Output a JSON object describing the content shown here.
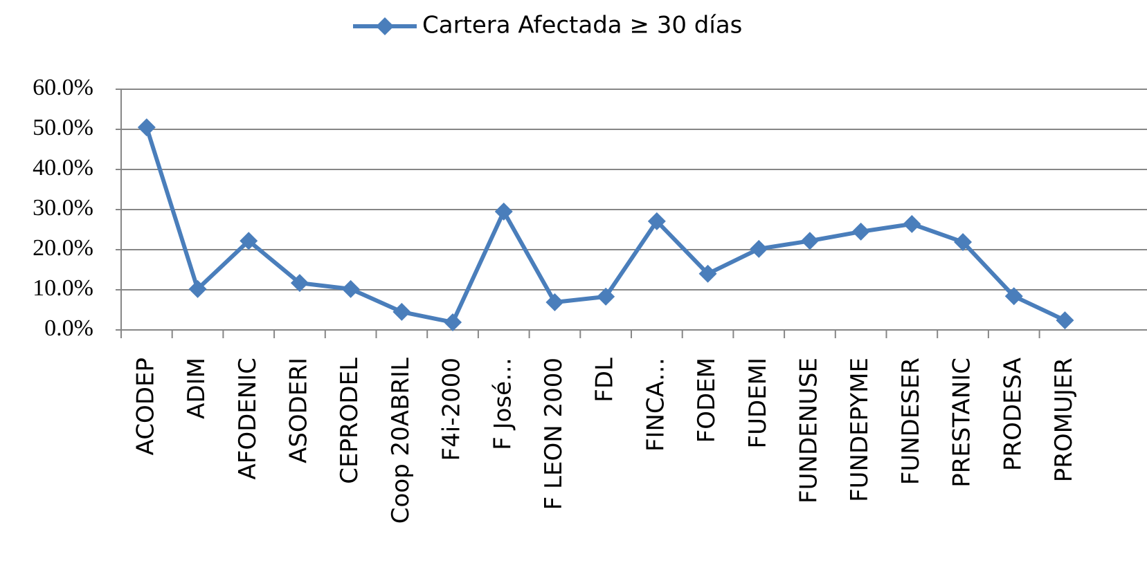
{
  "chart_data": {
    "type": "line",
    "categories": [
      "ACODEP",
      "ADIM",
      "AFODENIC",
      "ASODERI",
      "CEPRODEL",
      "Coop 20ABRIL",
      "F4i-2000",
      "F José…",
      "F LEON 2000",
      "FDL",
      "FINCA…",
      "FODEM",
      "FUDEMI",
      "FUNDENUSE",
      "FUNDEPYME",
      "FUNDESER",
      "PRESTANIC",
      "PRODESA",
      "PROMUJER"
    ],
    "series": [
      {
        "name": "Cartera Afectada ≥ 30 días",
        "color": "#4a7ebb",
        "values": [
          50.5,
          10.2,
          22.2,
          11.7,
          10.2,
          4.5,
          1.9,
          29.5,
          6.9,
          8.3,
          27.1,
          14.0,
          20.2,
          22.2,
          24.5,
          26.4,
          21.9,
          8.4,
          2.4
        ]
      }
    ],
    "ylim": [
      0,
      60
    ],
    "yticks": [
      {
        "value": 0,
        "label": "0.0%"
      },
      {
        "value": 10,
        "label": "10.0%"
      },
      {
        "value": 20,
        "label": "20.0%"
      },
      {
        "value": 30,
        "label": "30.0%"
      },
      {
        "value": 40,
        "label": "40.0%"
      },
      {
        "value": 50,
        "label": "50.0%"
      },
      {
        "value": 60,
        "label": "60.0%"
      }
    ],
    "grid": true,
    "legend": "top"
  }
}
